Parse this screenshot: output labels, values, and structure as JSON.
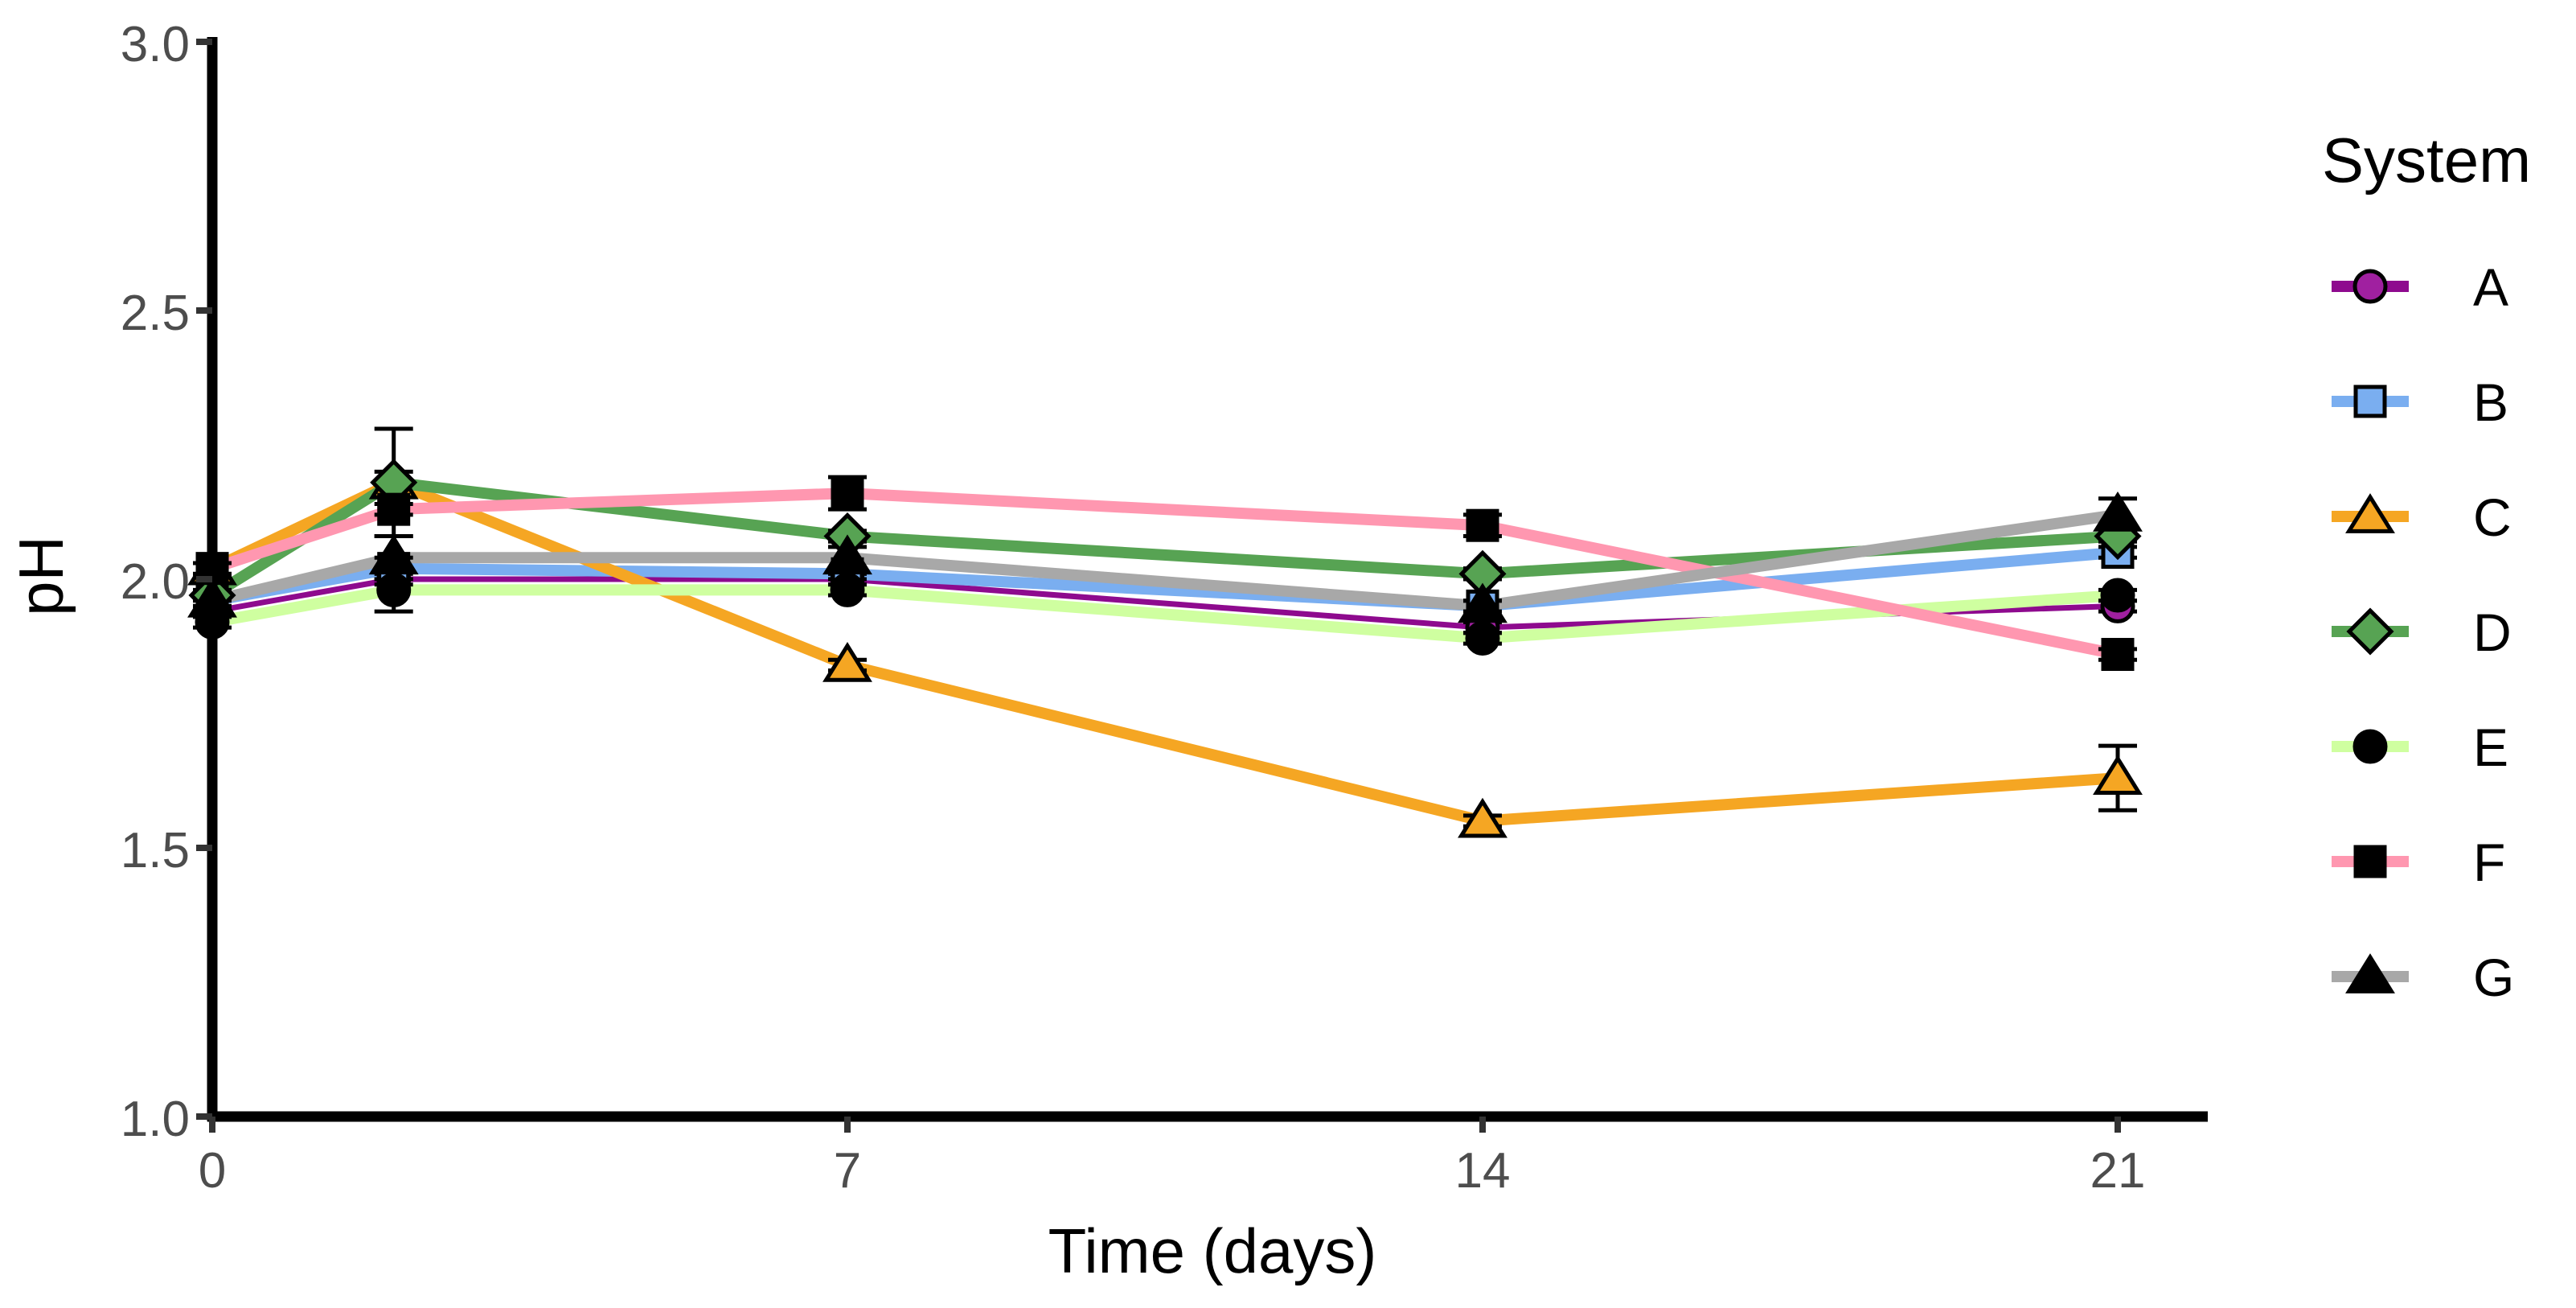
{
  "chart_data": {
    "type": "line",
    "title": "",
    "xlabel": "Time (days)",
    "ylabel": "pH",
    "xlim": [
      0,
      21
    ],
    "ylim": [
      1.0,
      3.0
    ],
    "x_ticks": [
      0,
      7,
      14,
      21
    ],
    "x_tick_labels": [
      "0",
      "7",
      "14",
      "21"
    ],
    "y_ticks": [
      1.0,
      1.5,
      2.0,
      2.5,
      3.0
    ],
    "y_tick_labels": [
      "1.0",
      "1.5",
      "2.0",
      "2.5",
      "3.0"
    ],
    "grid": false,
    "legend_title": "System",
    "legend_position": "right",
    "x": [
      0,
      2,
      7,
      14,
      21
    ],
    "series": [
      {
        "name": "A",
        "color": "#8E0A8E",
        "marker": "circle",
        "marker_fill": "#A020A0",
        "values": [
          1.94,
          2.0,
          2.0,
          1.91,
          1.95
        ],
        "errors": [
          0.01,
          0.01,
          0.01,
          0.01,
          0.01
        ]
      },
      {
        "name": "B",
        "color": "#7AAEF0",
        "marker": "square",
        "marker_fill": "#7AAEF0",
        "values": [
          1.96,
          2.02,
          2.01,
          1.95,
          2.05
        ],
        "errors": [
          0.01,
          0.02,
          0.01,
          0.01,
          0.01
        ]
      },
      {
        "name": "C",
        "color": "#F5A623",
        "marker": "triangle",
        "marker_fill": "#F5A623",
        "values": [
          2.02,
          2.18,
          1.84,
          1.55,
          1.63
        ],
        "errors": [
          0.01,
          0.02,
          0.01,
          0.01,
          0.06
        ]
      },
      {
        "name": "D",
        "color": "#57A353",
        "marker": "diamond",
        "marker_fill": "#57A353",
        "values": [
          1.97,
          2.18,
          2.08,
          2.01,
          2.08
        ],
        "errors": [
          0.01,
          0.1,
          0.01,
          0.01,
          0.01
        ]
      },
      {
        "name": "E",
        "color": "#CFFFA0",
        "marker": "circle",
        "marker_fill": "#000000",
        "values": [
          1.92,
          1.98,
          1.98,
          1.89,
          1.97
        ],
        "errors": [
          0.01,
          0.04,
          0.01,
          0.01,
          0.01
        ]
      },
      {
        "name": "F",
        "color": "#FF97B0",
        "marker": "square",
        "marker_fill": "#000000",
        "values": [
          2.02,
          2.13,
          2.16,
          2.1,
          1.86
        ],
        "errors": [
          0.01,
          0.01,
          0.03,
          0.02,
          0.01
        ]
      },
      {
        "name": "G",
        "color": "#A8A8A8",
        "marker": "triangle",
        "marker_fill": "#000000",
        "values": [
          1.96,
          2.04,
          2.04,
          1.95,
          2.12
        ],
        "errors": [
          0.01,
          0.04,
          0.02,
          0.01,
          0.03
        ]
      }
    ]
  }
}
